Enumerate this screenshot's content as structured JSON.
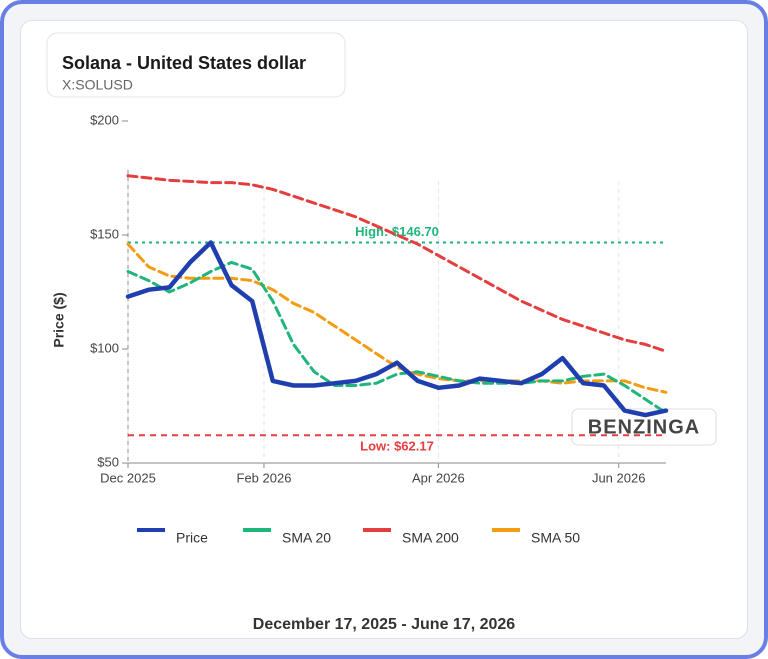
{
  "chart_data": {
    "type": "line",
    "title": "Solana - United States dollar",
    "subtitle": "X:SOLUSD",
    "y_label": "Price ($)",
    "date_range": "December 17, 2025 - June 17, 2026",
    "watermark": "BENZINGA",
    "x": [
      "2025-12-17",
      "2025-12-24",
      "2025-12-31",
      "2026-01-07",
      "2026-01-14",
      "2026-01-21",
      "2026-01-28",
      "2026-02-04",
      "2026-02-11",
      "2026-02-18",
      "2026-02-25",
      "2026-03-04",
      "2026-03-11",
      "2026-03-18",
      "2026-03-25",
      "2026-04-01",
      "2026-04-08",
      "2026-04-15",
      "2026-04-22",
      "2026-04-29",
      "2026-05-06",
      "2026-05-13",
      "2026-05-20",
      "2026-05-27",
      "2026-06-03",
      "2026-06-10",
      "2026-06-17"
    ],
    "xlim": [
      "2025-12-17",
      "2026-06-17"
    ],
    "xticks": [
      {
        "value": "2025-12-17",
        "label": "Dec 2025"
      },
      {
        "value": "2026-02-01",
        "label": "Feb 2026"
      },
      {
        "value": "2026-04-01",
        "label": "Apr 2026"
      },
      {
        "value": "2026-06-01",
        "label": "Jun 2026"
      }
    ],
    "ylim": [
      50,
      200
    ],
    "yticks": [
      {
        "value": 50,
        "label": "$50"
      },
      {
        "value": 100,
        "label": "$100"
      },
      {
        "value": 150,
        "label": "$150"
      },
      {
        "value": 200,
        "label": "$200"
      }
    ],
    "grid": true,
    "series": [
      {
        "name": "Price",
        "color": "#1f3fae",
        "values": [
          123,
          126,
          127,
          138,
          146.7,
          128,
          121,
          86,
          84,
          84,
          85,
          86,
          89,
          94,
          86,
          83,
          84,
          87,
          86,
          85,
          89,
          96,
          85,
          84,
          73,
          71,
          73
        ]
      },
      {
        "name": "SMA 20",
        "color": "#1fb67c",
        "values": [
          134,
          130,
          125,
          129,
          134,
          138,
          135,
          121,
          102,
          90,
          84,
          84,
          85,
          89,
          90,
          88,
          86,
          85,
          85,
          85,
          86,
          86,
          88,
          89,
          84,
          78,
          72
        ]
      },
      {
        "name": "SMA 200",
        "color": "#e53e3e",
        "values": [
          176,
          175,
          174,
          173.5,
          173,
          173,
          172,
          170,
          167,
          164,
          161,
          158,
          154,
          150,
          146,
          141,
          136,
          131,
          126,
          121,
          117,
          113,
          110,
          107,
          104,
          102,
          99
        ]
      },
      {
        "name": "SMA 50",
        "color": "#f39c12",
        "values": [
          146,
          136,
          132,
          131,
          131,
          131,
          130,
          126,
          120,
          116,
          110,
          104,
          98,
          92,
          89,
          87,
          86,
          86,
          86,
          86,
          86,
          85,
          86,
          86,
          86,
          83,
          81
        ]
      }
    ],
    "reference_lines": [
      {
        "value": 146.7,
        "label": "High: $146.70",
        "color": "#1fb67c"
      },
      {
        "value": 62.17,
        "label": "Low: $62.17",
        "color": "#e53e3e"
      }
    ]
  }
}
